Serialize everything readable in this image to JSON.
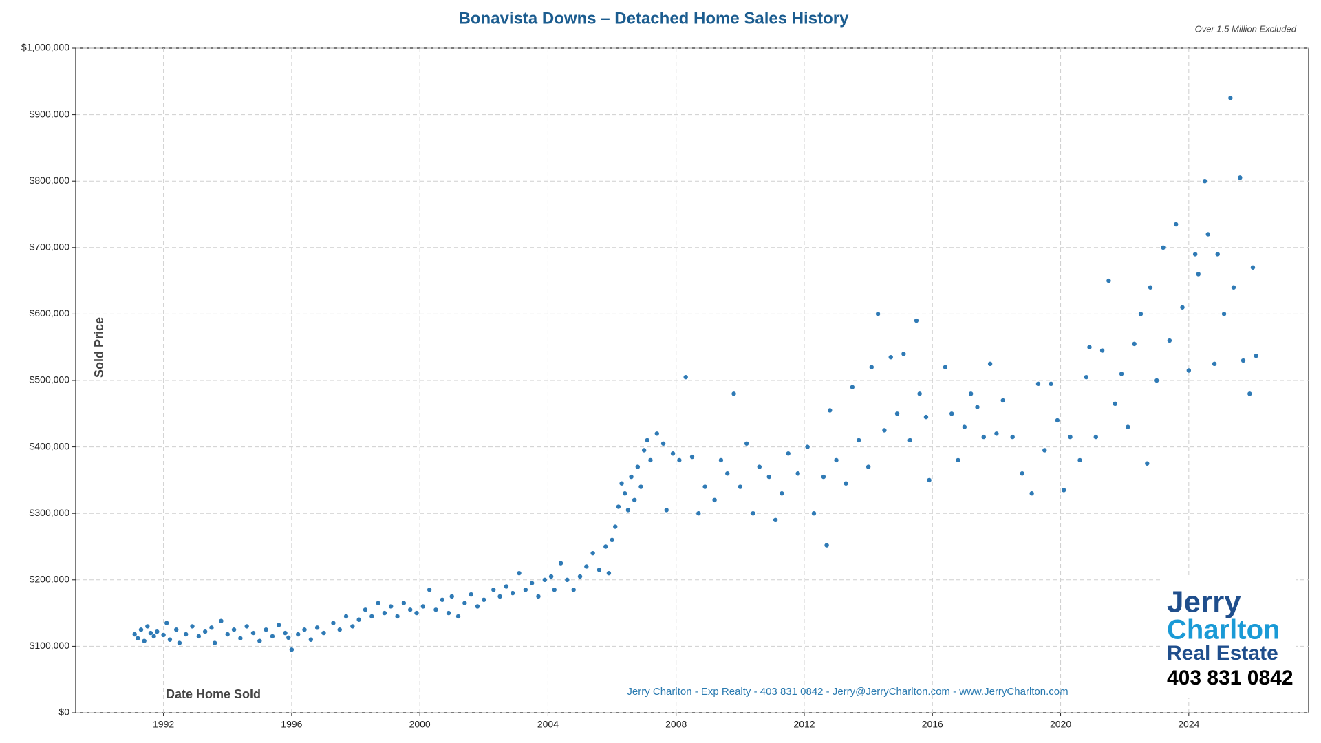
{
  "chart_data": {
    "type": "scatter",
    "title": "Bonavista Downs – Detached Home Sales History",
    "subtitle": "Over 1.5 Million Excluded",
    "ylabel": "Sold Price",
    "xlabel": "Date Home Sold",
    "annotation": "Jerry Charlton - Exp Realty - 403 831 0842 - Jerry@JerryCharlton.com - www.JerryCharlton.com",
    "color": "#2f7ab5",
    "grid": true,
    "xlim": [
      1989.26,
      2027.74
    ],
    "xticks": [
      1992,
      1996,
      2000,
      2004,
      2008,
      2012,
      2016,
      2020,
      2024
    ],
    "ylim": [
      0,
      1000000
    ],
    "yticks": [
      {
        "value": 0,
        "label": "$0"
      },
      {
        "value": 100000,
        "label": "$100,000"
      },
      {
        "value": 200000,
        "label": "$200,000"
      },
      {
        "value": 300000,
        "label": "$300,000"
      },
      {
        "value": 400000,
        "label": "$400,000"
      },
      {
        "value": 500000,
        "label": "$500,000"
      },
      {
        "value": 600000,
        "label": "$600,000"
      },
      {
        "value": 700000,
        "label": "$700,000"
      },
      {
        "value": 800000,
        "label": "$800,000"
      },
      {
        "value": 900000,
        "label": "$900,000"
      },
      {
        "value": 1000000,
        "label": "$1,000,000"
      }
    ],
    "x": [
      1991.1,
      1991.2,
      1991.3,
      1991.4,
      1991.5,
      1991.6,
      1991.7,
      1991.8,
      1992.0,
      1992.1,
      1992.2,
      1992.4,
      1992.5,
      1992.7,
      1992.9,
      1993.1,
      1993.3,
      1993.5,
      1993.6,
      1993.8,
      1994.0,
      1994.2,
      1994.4,
      1994.6,
      1994.8,
      1995.0,
      1995.2,
      1995.4,
      1995.6,
      1995.8,
      1995.9,
      1996.0,
      1996.2,
      1996.4,
      1996.6,
      1996.8,
      1997.0,
      1997.3,
      1997.5,
      1997.7,
      1997.9,
      1998.1,
      1998.3,
      1998.5,
      1998.7,
      1998.9,
      1999.1,
      1999.3,
      1999.5,
      1999.7,
      1999.9,
      2000.1,
      2000.3,
      2000.5,
      2000.7,
      2000.9,
      2001.0,
      2001.2,
      2001.4,
      2001.6,
      2001.8,
      2002.0,
      2002.3,
      2002.5,
      2002.7,
      2002.9,
      2003.1,
      2003.3,
      2003.5,
      2003.7,
      2003.9,
      2004.1,
      2004.2,
      2004.4,
      2004.6,
      2004.8,
      2005.0,
      2005.2,
      2005.4,
      2005.6,
      2005.8,
      2005.9,
      2006.0,
      2006.1,
      2006.2,
      2006.3,
      2006.4,
      2006.5,
      2006.6,
      2006.7,
      2006.8,
      2006.9,
      2007.0,
      2007.1,
      2007.2,
      2007.4,
      2007.6,
      2007.7,
      2007.9,
      2008.1,
      2008.3,
      2008.5,
      2008.7,
      2008.9,
      2009.2,
      2009.4,
      2009.6,
      2009.8,
      2010.0,
      2010.2,
      2010.4,
      2010.6,
      2010.9,
      2011.1,
      2011.3,
      2011.5,
      2011.8,
      2012.1,
      2012.3,
      2012.6,
      2012.7,
      2012.8,
      2013.0,
      2013.3,
      2013.5,
      2013.7,
      2014.0,
      2014.1,
      2014.3,
      2014.5,
      2014.7,
      2014.9,
      2015.1,
      2015.3,
      2015.5,
      2015.6,
      2015.8,
      2015.9,
      2016.4,
      2016.6,
      2016.8,
      2017.0,
      2017.2,
      2017.4,
      2017.6,
      2017.8,
      2018.0,
      2018.2,
      2018.5,
      2018.8,
      2019.1,
      2019.3,
      2019.5,
      2019.7,
      2019.9,
      2020.1,
      2020.3,
      2020.6,
      2020.8,
      2020.9,
      2021.1,
      2021.3,
      2021.5,
      2021.7,
      2021.9,
      2022.1,
      2022.3,
      2022.5,
      2022.7,
      2022.8,
      2023.0,
      2023.2,
      2023.4,
      2023.6,
      2023.8,
      2024.0,
      2024.2,
      2024.3,
      2024.5,
      2024.6,
      2024.8,
      2024.9,
      2025.1,
      2025.3,
      2025.4,
      2025.6,
      2025.7,
      2025.9,
      2026.0,
      2026.1
    ],
    "values": [
      118000,
      112000,
      125000,
      108000,
      130000,
      120000,
      115000,
      122000,
      117000,
      135000,
      110000,
      125000,
      105000,
      118000,
      130000,
      115000,
      122000,
      128000,
      105000,
      138000,
      118000,
      125000,
      112000,
      130000,
      120000,
      108000,
      125000,
      115000,
      132000,
      120000,
      113000,
      95000,
      118000,
      125000,
      110000,
      128000,
      120000,
      135000,
      125000,
      145000,
      130000,
      140000,
      155000,
      145000,
      165000,
      150000,
      160000,
      145000,
      165000,
      155000,
      150000,
      160000,
      185000,
      155000,
      170000,
      150000,
      175000,
      145000,
      165000,
      178000,
      160000,
      170000,
      185000,
      175000,
      190000,
      180000,
      210000,
      185000,
      195000,
      175000,
      200000,
      205000,
      185000,
      225000,
      200000,
      185000,
      205000,
      220000,
      240000,
      215000,
      250000,
      210000,
      260000,
      280000,
      310000,
      345000,
      330000,
      305000,
      355000,
      320000,
      370000,
      340000,
      395000,
      410000,
      380000,
      420000,
      405000,
      305000,
      390000,
      380000,
      505000,
      385000,
      300000,
      340000,
      320000,
      380000,
      360000,
      480000,
      340000,
      405000,
      300000,
      370000,
      355000,
      290000,
      330000,
      390000,
      360000,
      400000,
      300000,
      355000,
      252000,
      455000,
      380000,
      345000,
      490000,
      410000,
      370000,
      520000,
      600000,
      425000,
      535000,
      450000,
      540000,
      410000,
      590000,
      480000,
      445000,
      350000,
      520000,
      450000,
      380000,
      430000,
      480000,
      460000,
      415000,
      525000,
      420000,
      470000,
      415000,
      360000,
      330000,
      495000,
      395000,
      495000,
      440000,
      335000,
      415000,
      380000,
      505000,
      550000,
      415000,
      545000,
      650000,
      465000,
      510000,
      430000,
      555000,
      600000,
      375000,
      640000,
      500000,
      700000,
      560000,
      735000,
      610000,
      515000,
      690000,
      660000,
      800000,
      720000,
      525000,
      690000,
      600000,
      925000,
      640000,
      805000,
      530000,
      480000,
      670000,
      537000
    ]
  },
  "branding": {
    "line1": "Jerry",
    "line2": "Charlton",
    "line3": "Real Estate",
    "phone": "403 831 0842"
  }
}
